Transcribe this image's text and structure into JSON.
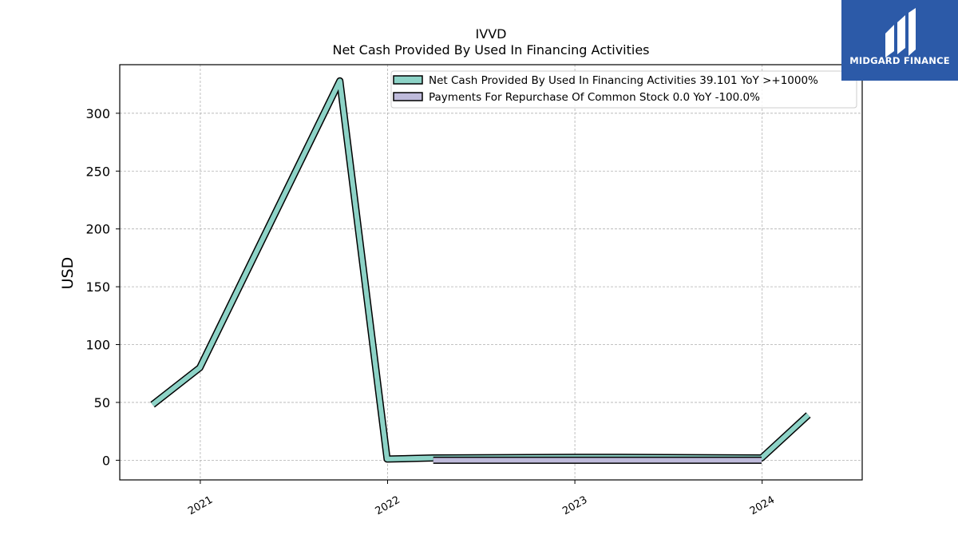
{
  "brand": {
    "name": "MIDGARD FINANCE",
    "bg_color": "#2c5aa8"
  },
  "chart_data": {
    "type": "line",
    "title": "IVVD",
    "subtitle": "Net Cash Provided By Used In Financing Activities",
    "ylabel": "USD",
    "xlabel": "",
    "x_ticks": [
      "2021",
      "2022",
      "2023",
      "2024"
    ],
    "y_ticks": [
      0,
      50,
      100,
      150,
      200,
      250,
      300
    ],
    "ylim": [
      -17,
      342
    ],
    "xlim": [
      "2020-07-28",
      "2024-07-14"
    ],
    "grid": true,
    "legend_position": "top-right",
    "series": [
      {
        "name": "Net Cash Provided By Used In Financing Activities",
        "legend_label": "Net Cash Provided By Used In Financing Activities  39.101 YoY >+1000%",
        "color": "#8dd3c7",
        "x": [
          "2020-09-30",
          "2020-12-31",
          "2021-09-30",
          "2021-12-31",
          "2022-03-31",
          "2022-12-31",
          "2023-03-31",
          "2023-12-31",
          "2024-03-31"
        ],
        "y": [
          48,
          80,
          328,
          1,
          2,
          2.5,
          2.5,
          2,
          39.1
        ]
      },
      {
        "name": "Payments For Repurchase Of Common Stock",
        "legend_label": "Payments For Repurchase Of Common Stock  0.0 YoY -100.0%",
        "color": "#bebada",
        "x": [
          "2022-03-31",
          "2023-12-31"
        ],
        "y": [
          0,
          0
        ]
      }
    ]
  }
}
